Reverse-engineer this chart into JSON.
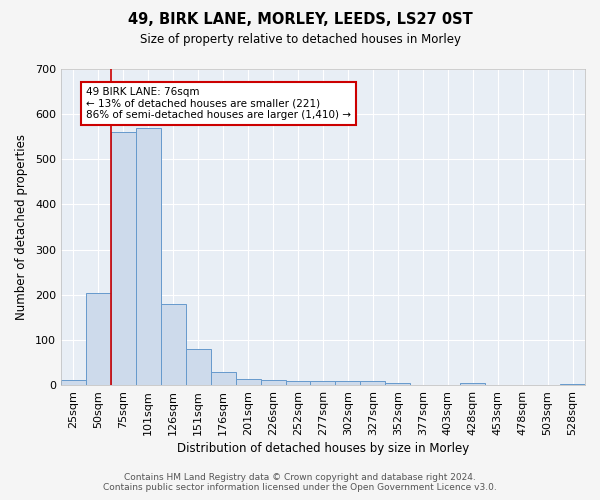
{
  "title": "49, BIRK LANE, MORLEY, LEEDS, LS27 0ST",
  "subtitle": "Size of property relative to detached houses in Morley",
  "xlabel": "Distribution of detached houses by size in Morley",
  "ylabel": "Number of detached properties",
  "bar_color": "#cddaeb",
  "bar_edge_color": "#6699cc",
  "background_color": "#e8eef5",
  "grid_color": "#ffffff",
  "categories": [
    "25sqm",
    "50sqm",
    "75sqm",
    "101sqm",
    "126sqm",
    "151sqm",
    "176sqm",
    "201sqm",
    "226sqm",
    "252sqm",
    "277sqm",
    "302sqm",
    "327sqm",
    "352sqm",
    "377sqm",
    "403sqm",
    "428sqm",
    "453sqm",
    "478sqm",
    "503sqm",
    "528sqm"
  ],
  "values": [
    12,
    205,
    560,
    570,
    180,
    80,
    30,
    14,
    12,
    8,
    10,
    10,
    8,
    5,
    0,
    0,
    5,
    0,
    0,
    0,
    3
  ],
  "vline_index": 2,
  "vline_color": "#cc0000",
  "annotation_line1": "49 BIRK LANE: 76sqm",
  "annotation_line2": "← 13% of detached houses are smaller (221)",
  "annotation_line3": "86% of semi-detached houses are larger (1,410) →",
  "annotation_box_color": "#ffffff",
  "annotation_box_edge_color": "#cc0000",
  "ylim": [
    0,
    700
  ],
  "yticks": [
    0,
    100,
    200,
    300,
    400,
    500,
    600,
    700
  ],
  "footer_line1": "Contains HM Land Registry data © Crown copyright and database right 2024.",
  "footer_line2": "Contains public sector information licensed under the Open Government Licence v3.0.",
  "fig_bg": "#f5f5f5",
  "figsize": [
    6.0,
    5.0
  ],
  "dpi": 100
}
